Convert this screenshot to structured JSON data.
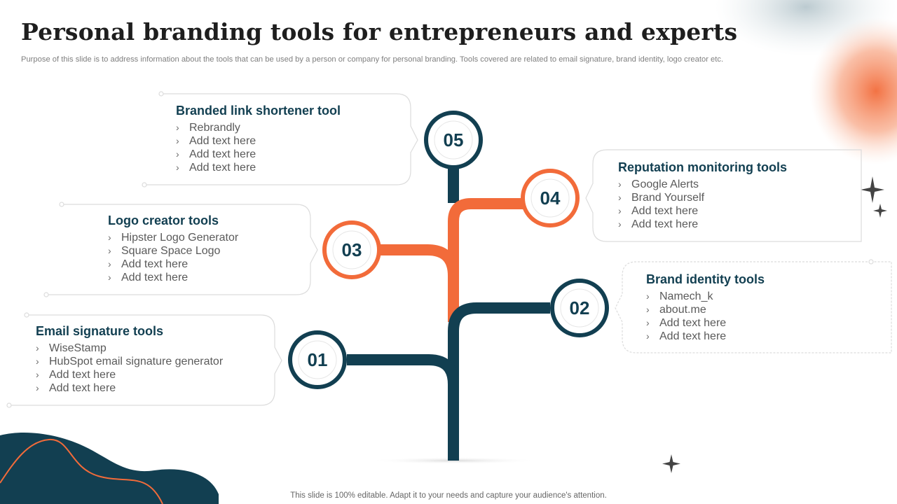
{
  "title": "Personal branding tools for entrepreneurs and experts",
  "subtitle": "Purpose of this slide is to address information about the tools that can be used by a person or company for personal branding. Tools covered are related to email signature, brand identity, logo creator etc.",
  "footer": "This slide is 100% editable. Adapt it to your needs and capture your audience's attention.",
  "colors": {
    "navy": "#123f51",
    "orange": "#f26b3a"
  },
  "tools": [
    {
      "number": "01",
      "title": "Email signature tools",
      "items": [
        "WiseStamp",
        "HubSpot email signature generator",
        "Add text here",
        "Add text here"
      ]
    },
    {
      "number": "02",
      "title": "Brand identity tools",
      "items": [
        "Namech_k",
        "about.me",
        "Add text here",
        "Add text here"
      ]
    },
    {
      "number": "03",
      "title": "Logo creator tools",
      "items": [
        "Hipster Logo Generator",
        "Square Space Logo",
        "Add text here",
        "Add text here"
      ]
    },
    {
      "number": "04",
      "title": "Reputation monitoring tools",
      "items": [
        "Google Alerts",
        "Brand Yourself",
        "Add text here",
        "Add text here"
      ]
    },
    {
      "number": "05",
      "title": "Branded link shortener tool",
      "items": [
        "Rebrandly",
        "Add text here",
        "Add text here",
        "Add text here"
      ]
    }
  ]
}
